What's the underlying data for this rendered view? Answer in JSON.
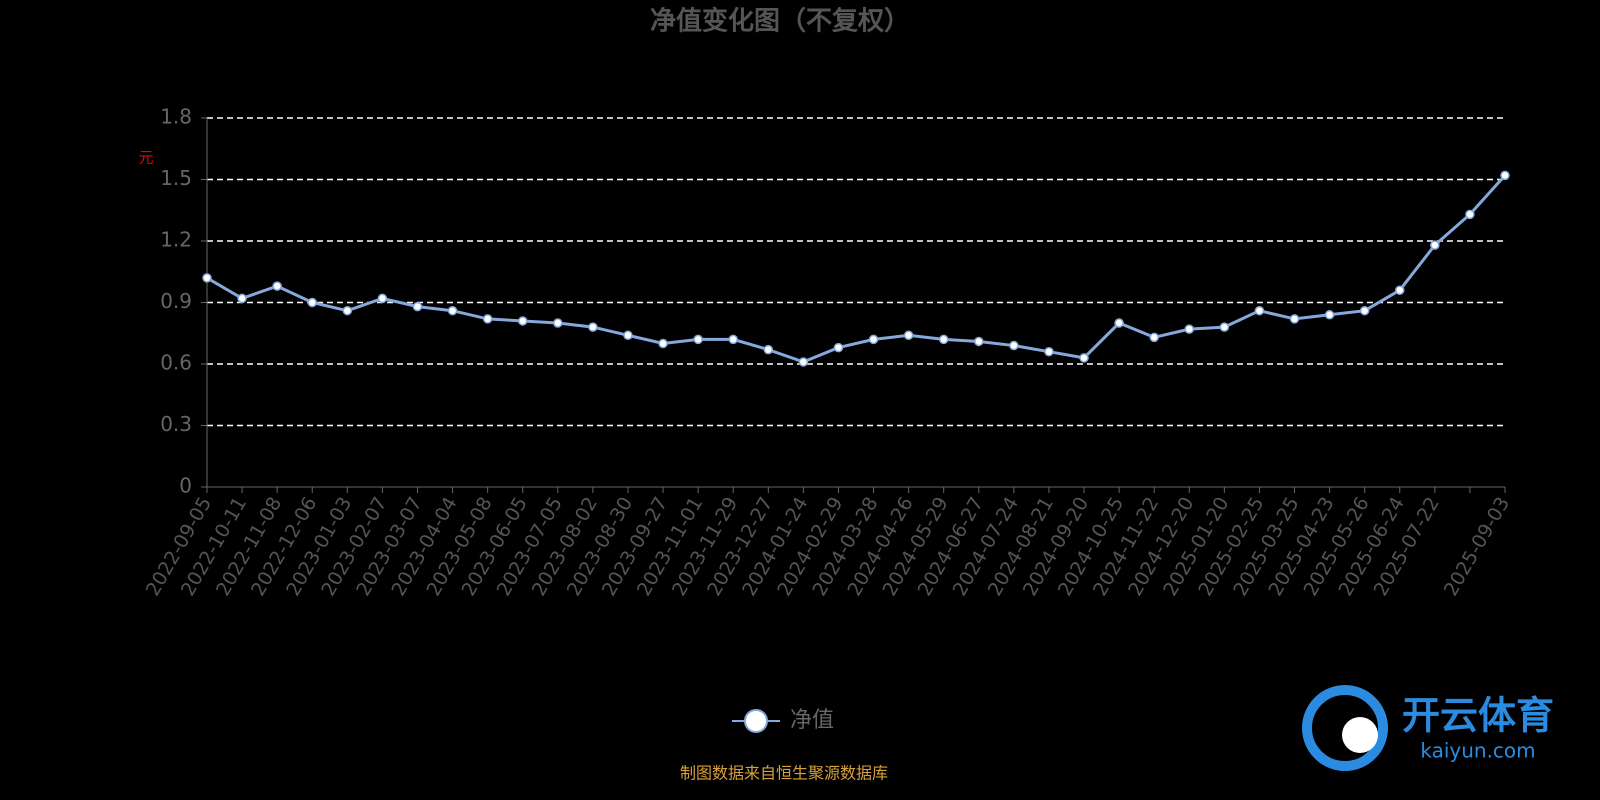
{
  "chart_data": {
    "type": "line",
    "title": "净值变化图（不复权）",
    "y_label": "元",
    "source": "制图数据来自恒生聚源数据库",
    "watermark": {
      "name": "开云体育",
      "url": "kaiyun.com"
    },
    "categories": [
      "2022-09-05",
      "2022-10-11",
      "2022-11-08",
      "2022-12-06",
      "2023-01-03",
      "2023-02-07",
      "2023-03-07",
      "2023-04-04",
      "2023-05-08",
      "2023-06-05",
      "2023-07-05",
      "2023-08-02",
      "2023-08-30",
      "2023-09-27",
      "2023-11-01",
      "2023-11-29",
      "2023-12-27",
      "2024-01-24",
      "2024-02-29",
      "2024-03-28",
      "2024-04-26",
      "2024-05-29",
      "2024-06-27",
      "2024-07-24",
      "2024-08-21",
      "2024-09-20",
      "2024-10-25",
      "2024-11-22",
      "2024-12-20",
      "2025-01-20",
      "2025-02-25",
      "2025-03-25",
      "2025-04-23",
      "2025-05-26",
      "2025-06-24",
      "2025-07-22",
      null,
      "2025-09-03"
    ],
    "series": [
      {
        "name": "净值",
        "color": "#86a9dd",
        "values": [
          1.02,
          0.92,
          0.98,
          0.9,
          0.86,
          0.92,
          0.88,
          0.86,
          0.82,
          0.81,
          0.8,
          0.78,
          0.74,
          0.7,
          0.72,
          0.72,
          0.67,
          0.61,
          0.68,
          0.72,
          0.74,
          0.72,
          0.71,
          0.69,
          0.66,
          0.63,
          0.8,
          0.73,
          0.77,
          0.78,
          0.86,
          0.82,
          0.84,
          0.86,
          0.96,
          1.18,
          1.33,
          1.52
        ]
      }
    ],
    "ylim": [
      0,
      1.8
    ],
    "yticks": [
      0,
      0.3,
      0.6,
      0.9,
      1.2,
      1.5,
      1.8
    ],
    "grid": true
  }
}
